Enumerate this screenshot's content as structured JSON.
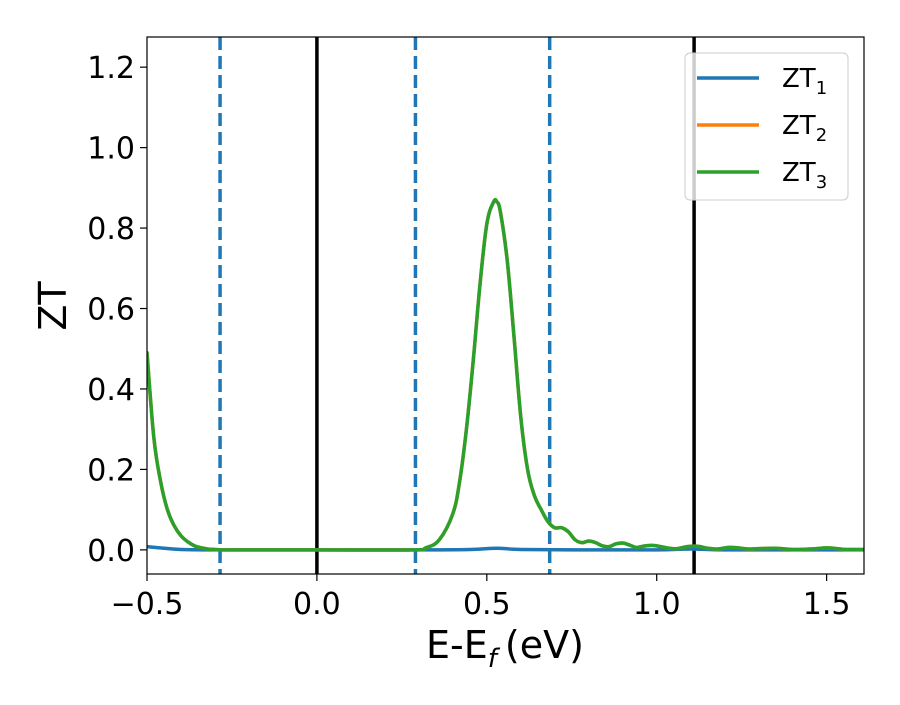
{
  "chart_data": {
    "type": "line",
    "xlabel": "E-E",
    "xlabel_sub": "f",
    "xlabel_unit": "(eV)",
    "ylabel": "ZT",
    "xlim": [
      -0.5,
      1.61
    ],
    "ylim": [
      -0.06,
      1.275
    ],
    "grid": false,
    "legend_position": "top-right",
    "xticks": [
      {
        "value": -0.5,
        "label": "−0.5"
      },
      {
        "value": 0.0,
        "label": "0.0"
      },
      {
        "value": 0.5,
        "label": "0.5"
      },
      {
        "value": 1.0,
        "label": "1.0"
      },
      {
        "value": 1.5,
        "label": "1.5"
      }
    ],
    "yticks": [
      {
        "value": 0.0,
        "label": "0.0"
      },
      {
        "value": 0.2,
        "label": "0.2"
      },
      {
        "value": 0.4,
        "label": "0.4"
      },
      {
        "value": 0.6,
        "label": "0.6"
      },
      {
        "value": 0.8,
        "label": "0.8"
      },
      {
        "value": 1.0,
        "label": "1.0"
      },
      {
        "value": 1.2,
        "label": "1.2"
      }
    ],
    "vlines": [
      {
        "x": -0.285,
        "style": "dashed",
        "color": "#1f77b4"
      },
      {
        "x": 0.0,
        "style": "solid",
        "color": "#000000"
      },
      {
        "x": 0.29,
        "style": "dashed",
        "color": "#1f77b4"
      },
      {
        "x": 0.685,
        "style": "dashed",
        "color": "#1f77b4"
      },
      {
        "x": 1.11,
        "style": "solid",
        "color": "#000000"
      }
    ],
    "series": [
      {
        "name": "ZT",
        "sub": "1",
        "color": "#1f77b4",
        "x": [
          -0.5,
          -0.45,
          -0.4,
          -0.3,
          -0.2,
          0.0,
          0.3,
          0.45,
          0.53,
          0.6,
          0.8,
          1.0,
          1.1,
          1.2,
          1.4,
          1.61
        ],
        "y": [
          0.008,
          0.004,
          0.001,
          0.0,
          0.0,
          0.0,
          0.0,
          0.001,
          0.004,
          0.001,
          0.0,
          0.0,
          0.002,
          0.0,
          0.0,
          0.0
        ]
      },
      {
        "name": "ZT",
        "sub": "2",
        "color": "#ff7f0e",
        "x": [
          -0.5,
          -0.48,
          -0.46,
          -0.44,
          -0.42,
          -0.4,
          -0.38,
          -0.36,
          -0.34,
          -0.32,
          -0.3,
          -0.28,
          -0.25,
          0.0,
          0.28,
          0.32,
          0.36,
          0.4,
          0.42,
          0.44,
          0.46,
          0.48,
          0.5,
          0.52,
          0.53,
          0.54,
          0.56,
          0.58,
          0.6,
          0.62,
          0.64,
          0.66,
          0.68,
          0.7,
          0.72,
          0.74,
          0.76,
          0.78,
          0.8,
          0.82,
          0.84,
          0.86,
          0.88,
          0.9,
          0.92,
          0.94,
          0.96,
          0.98,
          1.0,
          1.03,
          1.06,
          1.09,
          1.12,
          1.15,
          1.18,
          1.21,
          1.24,
          1.27,
          1.3,
          1.35,
          1.4,
          1.45,
          1.5,
          1.53,
          1.56,
          1.61
        ],
        "y": [
          0.49,
          0.28,
          0.17,
          0.1,
          0.06,
          0.035,
          0.02,
          0.01,
          0.005,
          0.002,
          0.001,
          0.0,
          0.0,
          0.0,
          0.0,
          0.005,
          0.025,
          0.09,
          0.17,
          0.3,
          0.47,
          0.66,
          0.81,
          0.865,
          0.865,
          0.84,
          0.72,
          0.53,
          0.33,
          0.2,
          0.135,
          0.1,
          0.07,
          0.055,
          0.055,
          0.045,
          0.025,
          0.018,
          0.022,
          0.018,
          0.01,
          0.008,
          0.015,
          0.017,
          0.012,
          0.006,
          0.009,
          0.011,
          0.01,
          0.005,
          0.003,
          0.008,
          0.009,
          0.004,
          0.002,
          0.006,
          0.005,
          0.002,
          0.003,
          0.004,
          0.001,
          0.002,
          0.005,
          0.003,
          0.001,
          0.001
        ]
      },
      {
        "name": "ZT",
        "sub": "3",
        "color": "#2ca02c",
        "x": [
          -0.5,
          -0.48,
          -0.46,
          -0.44,
          -0.42,
          -0.4,
          -0.38,
          -0.36,
          -0.34,
          -0.32,
          -0.3,
          -0.28,
          -0.25,
          0.0,
          0.28,
          0.32,
          0.36,
          0.4,
          0.42,
          0.44,
          0.46,
          0.48,
          0.5,
          0.52,
          0.53,
          0.54,
          0.56,
          0.58,
          0.6,
          0.62,
          0.64,
          0.66,
          0.68,
          0.7,
          0.72,
          0.74,
          0.76,
          0.78,
          0.8,
          0.82,
          0.84,
          0.86,
          0.88,
          0.9,
          0.92,
          0.94,
          0.96,
          0.98,
          1.0,
          1.03,
          1.06,
          1.09,
          1.12,
          1.15,
          1.18,
          1.21,
          1.24,
          1.27,
          1.3,
          1.35,
          1.4,
          1.45,
          1.5,
          1.53,
          1.56,
          1.61
        ],
        "y": [
          0.49,
          0.28,
          0.17,
          0.1,
          0.06,
          0.035,
          0.02,
          0.01,
          0.005,
          0.002,
          0.001,
          0.0,
          0.0,
          0.0,
          0.0,
          0.005,
          0.025,
          0.09,
          0.17,
          0.3,
          0.47,
          0.66,
          0.81,
          0.865,
          0.865,
          0.84,
          0.72,
          0.53,
          0.33,
          0.2,
          0.135,
          0.1,
          0.07,
          0.055,
          0.055,
          0.045,
          0.025,
          0.018,
          0.022,
          0.018,
          0.01,
          0.008,
          0.015,
          0.017,
          0.012,
          0.006,
          0.009,
          0.011,
          0.01,
          0.005,
          0.003,
          0.008,
          0.009,
          0.004,
          0.002,
          0.006,
          0.005,
          0.002,
          0.003,
          0.004,
          0.001,
          0.002,
          0.005,
          0.003,
          0.001,
          0.001
        ]
      }
    ]
  }
}
